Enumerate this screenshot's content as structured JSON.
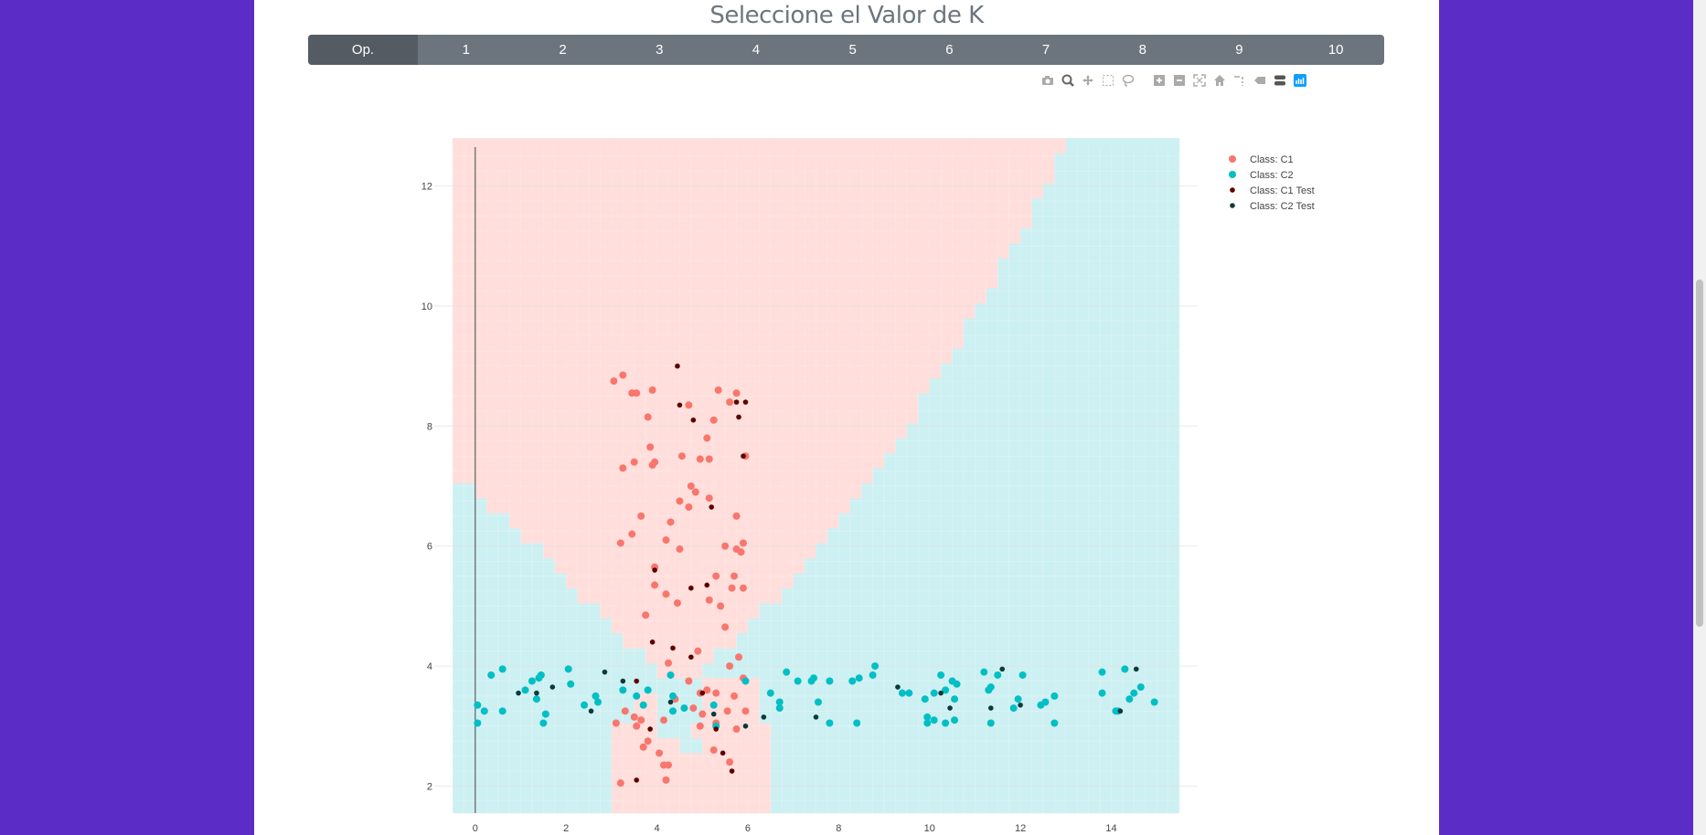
{
  "page": {
    "title": "Seleccione el Valor de K",
    "k_buttons": [
      "Op.",
      "1",
      "2",
      "3",
      "4",
      "5",
      "6",
      "7",
      "8",
      "9",
      "10"
    ],
    "active_button": "Op."
  },
  "modebar_icons": [
    "camera-icon",
    "zoom-icon",
    "pan-icon",
    "box-select-icon",
    "lasso-icon",
    "zoom-in-icon",
    "zoom-out-icon",
    "autoscale-icon",
    "reset-axes-icon",
    "spike-lines-icon",
    "hover-closest-icon",
    "hover-compare-icon",
    "plotly-logo-icon"
  ],
  "chart_data": {
    "type": "scatter",
    "title": "",
    "xlabel": "",
    "ylabel": "",
    "xlim": [
      -0.5,
      15.5
    ],
    "ylim": [
      1.55,
      12.65
    ],
    "xticks": [
      0,
      2,
      4,
      6,
      8,
      10,
      12,
      14
    ],
    "yticks": [
      2,
      4,
      6,
      8,
      10,
      12
    ],
    "grid": true,
    "legend_position": "top-right",
    "colors": {
      "C1": "#f8766d",
      "C2": "#00bfc4",
      "C1 Test": "#5c0000",
      "C2 Test": "#0b3b3b",
      "region_C1": "#ffdedb",
      "region_C2": "#cdf0f2"
    },
    "decision_region_note_boundary_c1_above": [
      [
        -0.5,
        7.25
      ],
      [
        0,
        6.9
      ],
      [
        0.5,
        6.55
      ],
      [
        1,
        6.2
      ],
      [
        1.5,
        5.85
      ],
      [
        2,
        5.5
      ],
      [
        2.5,
        5.05
      ],
      [
        3,
        4.6
      ],
      [
        3.5,
        4.25
      ],
      [
        4,
        3.95
      ],
      [
        4.5,
        3.75
      ],
      [
        5,
        3.95
      ],
      [
        5.5,
        4.3
      ],
      [
        6,
        4.7
      ],
      [
        6.5,
        5.05
      ],
      [
        7,
        5.4
      ],
      [
        7.5,
        5.8
      ],
      [
        8,
        6.3
      ],
      [
        8.5,
        6.8
      ],
      [
        9,
        7.4
      ],
      [
        9.5,
        8.0
      ],
      [
        10,
        8.6
      ],
      [
        10.5,
        9.2
      ],
      [
        11,
        9.9
      ],
      [
        11.5,
        10.5
      ],
      [
        12,
        11.2
      ],
      [
        12.5,
        11.9
      ],
      [
        13,
        12.6
      ],
      [
        13.5,
        13.5
      ]
    ],
    "series": [
      {
        "name": "Class: C1",
        "points": [
          [
            3.05,
            8.75
          ],
          [
            3.25,
            8.85
          ],
          [
            3.45,
            8.55
          ],
          [
            3.55,
            8.55
          ],
          [
            3.9,
            8.6
          ],
          [
            3.8,
            8.15
          ],
          [
            5.35,
            8.6
          ],
          [
            5.75,
            8.55
          ],
          [
            5.6,
            8.4
          ],
          [
            4.7,
            8.35
          ],
          [
            5.25,
            8.1
          ],
          [
            5.1,
            7.8
          ],
          [
            3.85,
            7.65
          ],
          [
            3.9,
            7.35
          ],
          [
            3.95,
            7.4
          ],
          [
            3.25,
            7.3
          ],
          [
            3.5,
            7.4
          ],
          [
            4.55,
            7.5
          ],
          [
            4.95,
            7.45
          ],
          [
            5.15,
            7.45
          ],
          [
            5.95,
            7.5
          ],
          [
            4.75,
            7.0
          ],
          [
            4.85,
            6.9
          ],
          [
            4.5,
            6.75
          ],
          [
            4.7,
            6.65
          ],
          [
            5.15,
            6.8
          ],
          [
            3.65,
            6.5
          ],
          [
            4.3,
            6.4
          ],
          [
            5.75,
            6.5
          ],
          [
            3.45,
            6.2
          ],
          [
            3.2,
            6.05
          ],
          [
            4.2,
            6.1
          ],
          [
            4.5,
            5.95
          ],
          [
            5.5,
            6.0
          ],
          [
            5.9,
            6.05
          ],
          [
            5.75,
            5.95
          ],
          [
            5.85,
            5.9
          ],
          [
            3.95,
            5.65
          ],
          [
            5.3,
            5.5
          ],
          [
            5.7,
            5.5
          ],
          [
            3.95,
            5.35
          ],
          [
            4.2,
            5.2
          ],
          [
            4.45,
            5.05
          ],
          [
            5.15,
            5.1
          ],
          [
            5.4,
            5.0
          ],
          [
            5.65,
            5.3
          ],
          [
            5.9,
            5.3
          ],
          [
            3.75,
            4.85
          ],
          [
            5.5,
            4.65
          ],
          [
            4.25,
            4.05
          ],
          [
            4.9,
            4.25
          ],
          [
            5.6,
            4.0
          ],
          [
            5.8,
            4.15
          ],
          [
            4.7,
            3.75
          ],
          [
            5.9,
            3.8
          ],
          [
            4.95,
            3.55
          ],
          [
            5.1,
            3.6
          ],
          [
            5.3,
            3.55
          ],
          [
            5.7,
            3.5
          ],
          [
            3.3,
            3.25
          ],
          [
            3.5,
            3.15
          ],
          [
            3.65,
            3.1
          ],
          [
            4.15,
            3.1
          ],
          [
            4.4,
            3.45
          ],
          [
            4.8,
            3.3
          ],
          [
            5.0,
            3.2
          ],
          [
            5.55,
            3.25
          ],
          [
            5.95,
            3.25
          ],
          [
            3.1,
            3.05
          ],
          [
            3.55,
            3.0
          ],
          [
            4.95,
            3.0
          ],
          [
            5.3,
            3.05
          ],
          [
            5.75,
            2.95
          ],
          [
            3.8,
            2.75
          ],
          [
            3.7,
            2.65
          ],
          [
            4.05,
            2.55
          ],
          [
            5.25,
            2.6
          ],
          [
            5.6,
            2.4
          ],
          [
            4.15,
            2.35
          ],
          [
            4.25,
            2.35
          ],
          [
            3.2,
            2.05
          ],
          [
            4.2,
            2.1
          ]
        ]
      },
      {
        "name": "Class: C2",
        "points": [
          [
            0.05,
            3.35
          ],
          [
            0.05,
            3.05
          ],
          [
            0.2,
            3.25
          ],
          [
            0.35,
            3.85
          ],
          [
            0.6,
            3.95
          ],
          [
            0.6,
            3.25
          ],
          [
            1.1,
            3.6
          ],
          [
            1.25,
            3.75
          ],
          [
            1.4,
            3.8
          ],
          [
            1.45,
            3.85
          ],
          [
            1.35,
            3.45
          ],
          [
            1.5,
            3.05
          ],
          [
            1.55,
            3.2
          ],
          [
            2.05,
            3.95
          ],
          [
            2.1,
            3.7
          ],
          [
            2.4,
            3.35
          ],
          [
            2.65,
            3.5
          ],
          [
            2.7,
            3.4
          ],
          [
            3.25,
            3.6
          ],
          [
            3.55,
            3.5
          ],
          [
            3.7,
            3.35
          ],
          [
            3.8,
            3.6
          ],
          [
            4.3,
            3.85
          ],
          [
            4.35,
            3.5
          ],
          [
            4.6,
            3.3
          ],
          [
            4.35,
            3.25
          ],
          [
            5.25,
            3.35
          ],
          [
            5.3,
            3.0
          ],
          [
            5.95,
            3.75
          ],
          [
            6.5,
            3.55
          ],
          [
            6.7,
            3.4
          ],
          [
            6.7,
            3.3
          ],
          [
            6.85,
            3.9
          ],
          [
            7.1,
            3.75
          ],
          [
            7.4,
            3.75
          ],
          [
            7.45,
            3.8
          ],
          [
            7.55,
            3.4
          ],
          [
            7.8,
            3.05
          ],
          [
            7.8,
            3.75
          ],
          [
            8.3,
            3.75
          ],
          [
            8.45,
            3.8
          ],
          [
            8.4,
            3.05
          ],
          [
            8.75,
            3.85
          ],
          [
            8.8,
            4.0
          ],
          [
            9.4,
            3.55
          ],
          [
            9.55,
            3.55
          ],
          [
            9.9,
            3.45
          ],
          [
            9.95,
            3.05
          ],
          [
            9.95,
            3.15
          ],
          [
            10.1,
            3.1
          ],
          [
            10.1,
            3.55
          ],
          [
            10.25,
            3.85
          ],
          [
            10.35,
            3.6
          ],
          [
            10.35,
            3.05
          ],
          [
            10.5,
            3.75
          ],
          [
            10.55,
            3.1
          ],
          [
            10.6,
            3.7
          ],
          [
            10.55,
            3.45
          ],
          [
            11.2,
            3.9
          ],
          [
            11.3,
            3.6
          ],
          [
            11.35,
            3.65
          ],
          [
            11.35,
            3.05
          ],
          [
            11.5,
            3.85
          ],
          [
            11.85,
            3.3
          ],
          [
            11.95,
            3.45
          ],
          [
            12.05,
            3.85
          ],
          [
            12.45,
            3.35
          ],
          [
            12.55,
            3.4
          ],
          [
            12.75,
            3.5
          ],
          [
            12.75,
            3.05
          ],
          [
            13.8,
            3.9
          ],
          [
            13.8,
            3.55
          ],
          [
            14.1,
            3.25
          ],
          [
            14.15,
            3.25
          ],
          [
            14.3,
            3.95
          ],
          [
            14.4,
            3.45
          ],
          [
            14.5,
            3.55
          ],
          [
            14.65,
            3.65
          ],
          [
            14.95,
            3.4
          ]
        ]
      },
      {
        "name": "Class: C1 Test",
        "points": [
          [
            4.45,
            9.0
          ],
          [
            4.5,
            8.35
          ],
          [
            4.8,
            8.1
          ],
          [
            5.75,
            8.4
          ],
          [
            5.95,
            8.4
          ],
          [
            5.8,
            8.15
          ],
          [
            5.9,
            7.5
          ],
          [
            5.2,
            6.65
          ],
          [
            3.95,
            5.6
          ],
          [
            4.75,
            5.3
          ],
          [
            5.1,
            5.35
          ],
          [
            3.9,
            4.4
          ],
          [
            4.35,
            4.3
          ],
          [
            4.75,
            4.15
          ],
          [
            3.55,
            3.75
          ],
          [
            5.0,
            3.55
          ],
          [
            3.85,
            2.95
          ],
          [
            5.3,
            2.95
          ],
          [
            5.45,
            2.55
          ],
          [
            5.65,
            2.25
          ],
          [
            3.55,
            2.1
          ]
        ]
      },
      {
        "name": "Class: C2 Test",
        "points": [
          [
            0.95,
            3.55
          ],
          [
            1.35,
            3.55
          ],
          [
            1.7,
            3.65
          ],
          [
            2.55,
            3.25
          ],
          [
            2.85,
            3.9
          ],
          [
            3.25,
            3.75
          ],
          [
            4.3,
            3.4
          ],
          [
            5.25,
            3.2
          ],
          [
            5.95,
            3.0
          ],
          [
            6.35,
            3.15
          ],
          [
            7.5,
            3.15
          ],
          [
            9.3,
            3.65
          ],
          [
            10.25,
            3.55
          ],
          [
            10.45,
            3.3
          ],
          [
            11.35,
            3.3
          ],
          [
            11.6,
            3.95
          ],
          [
            12.0,
            3.35
          ],
          [
            14.2,
            3.25
          ],
          [
            14.55,
            3.95
          ]
        ]
      }
    ]
  }
}
